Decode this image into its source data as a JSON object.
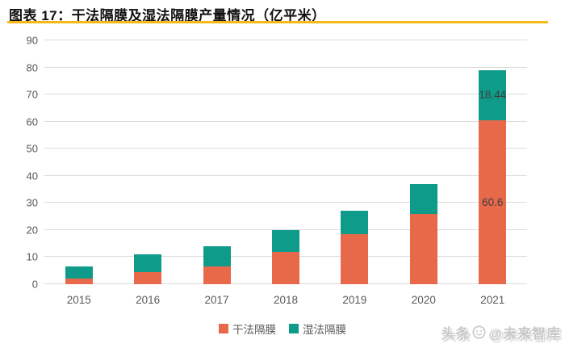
{
  "header": {
    "title": "图表 17：干法隔膜及湿法隔膜产量情况（亿平米）",
    "underline_color": "#F7B81E"
  },
  "chart_data": {
    "type": "bar",
    "stacked": true,
    "title": "干法隔膜及湿法隔膜产量情况（亿平米）",
    "categories": [
      "2015",
      "2016",
      "2017",
      "2018",
      "2019",
      "2020",
      "2021"
    ],
    "series": [
      {
        "name": "干法隔膜",
        "color": "#E8694A",
        "values": [
          2,
          4.5,
          6.5,
          12,
          18.5,
          26,
          60.6
        ],
        "value_labels": [
          "",
          "",
          "",
          "",
          "",
          "",
          "60.6"
        ]
      },
      {
        "name": "湿法隔膜",
        "color": "#0E9B8A",
        "values": [
          4.5,
          6.5,
          7.5,
          8,
          8.5,
          11,
          18.44
        ],
        "value_labels": [
          "",
          "",
          "",
          "",
          "",
          "",
          "18.44"
        ]
      }
    ],
    "xlabel": "",
    "ylabel": "",
    "ylim": [
      0,
      90
    ],
    "ytick_step": 10,
    "grid": true,
    "legend_position": "bottom",
    "gridline_color": "#DCDCDC",
    "axis_label_color": "#595959",
    "value_label_color": "#3F3F3F"
  },
  "watermark": {
    "prefix": "头条",
    "handle": "@未来智库"
  }
}
